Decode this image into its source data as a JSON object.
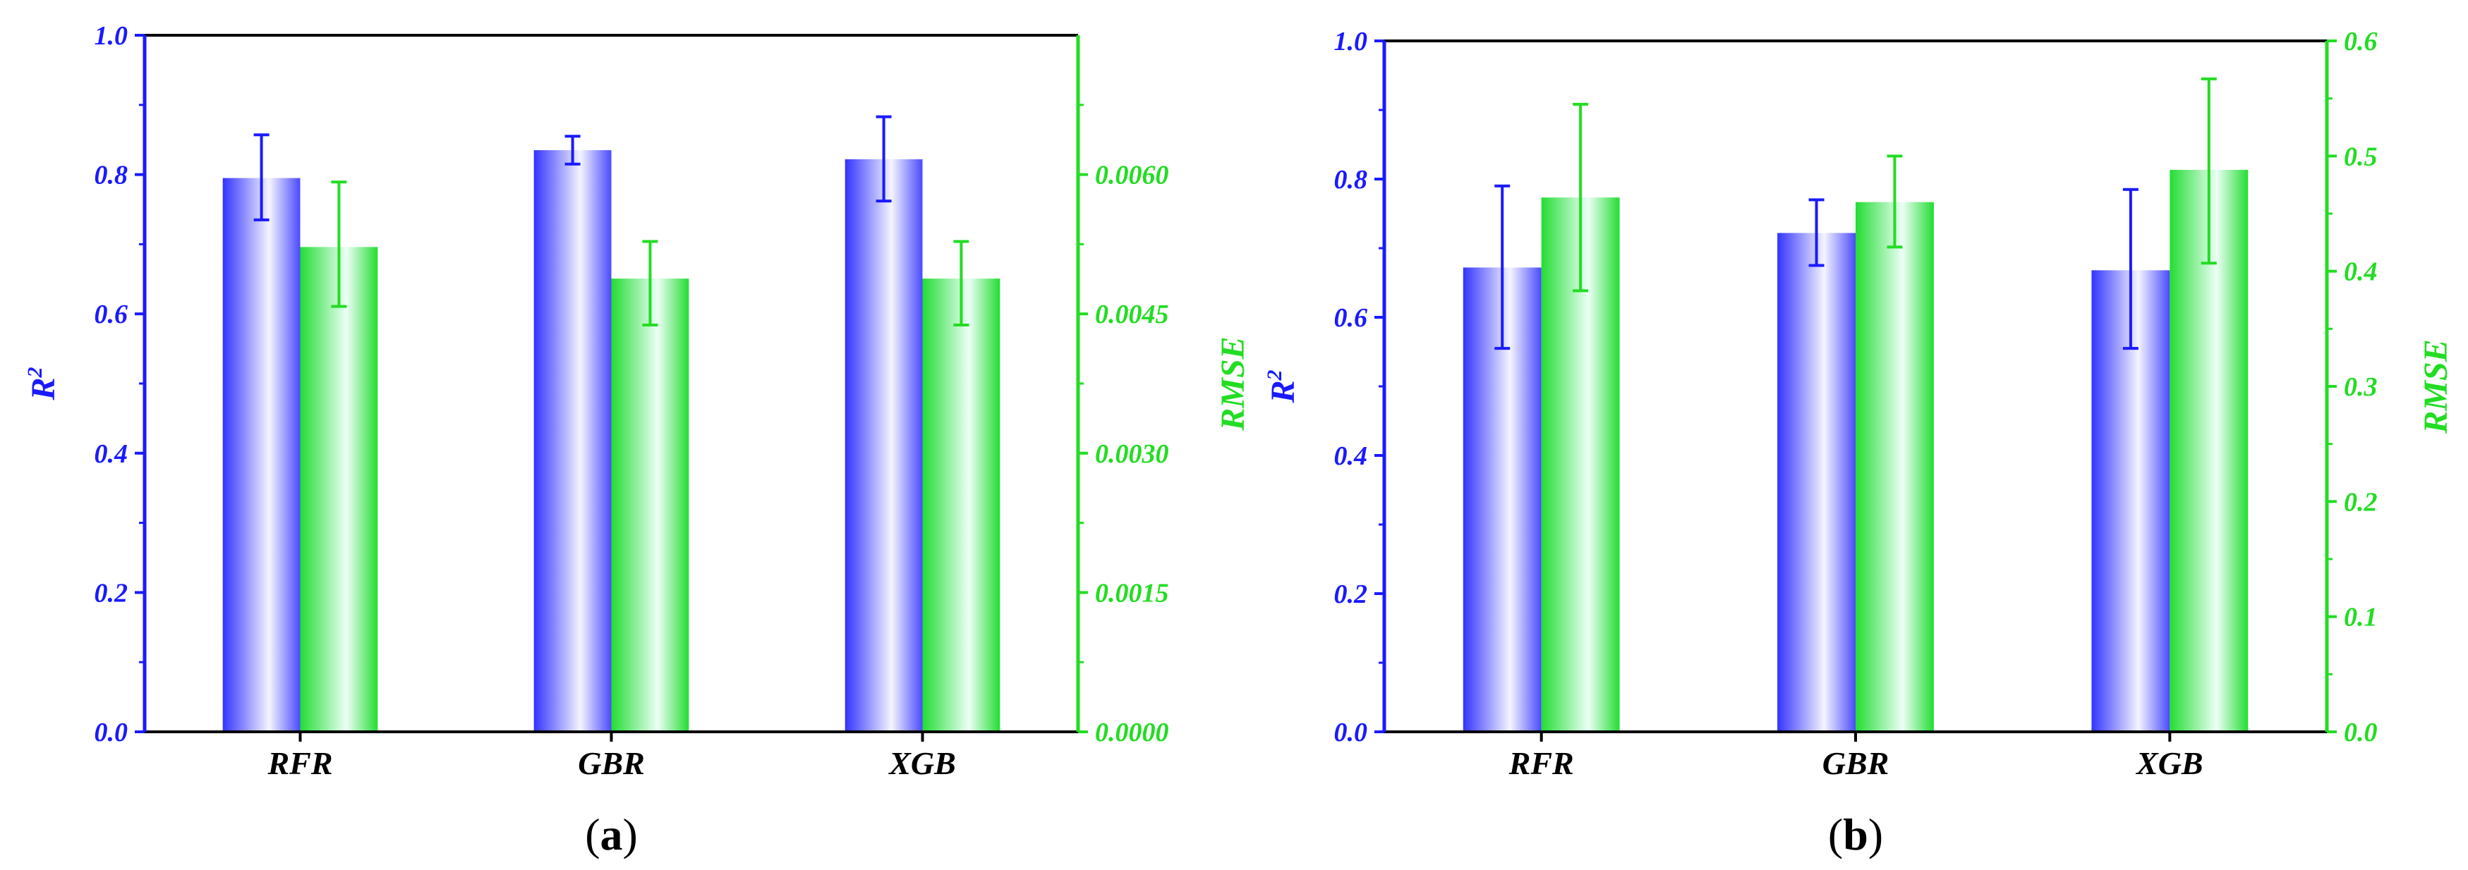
{
  "colors": {
    "left_axis": "#1a1aff",
    "right_axis": "#22dd22",
    "frame": "#000000"
  },
  "chart_data": [
    {
      "type": "bar",
      "panel_label_prefix": "(",
      "panel_label_letter": "a",
      "panel_label_suffix": ")",
      "categories": [
        "RFR",
        "GBR",
        "XGB"
      ],
      "left_axis": {
        "label_main": "R",
        "label_sup": "2",
        "ylim": [
          0,
          1.0
        ],
        "ticks": [
          0.0,
          0.2,
          0.4,
          0.6,
          0.8,
          1.0
        ],
        "tick_labels": [
          "0.0",
          "0.2",
          "0.4",
          "0.6",
          "0.8",
          "1.0"
        ]
      },
      "right_axis": {
        "label": "RMSE",
        "ylim": [
          0,
          0.0075
        ],
        "ticks": [
          0.0,
          0.0015,
          0.003,
          0.0045,
          0.006
        ],
        "tick_labels": [
          "0.0000",
          "0.0015",
          "0.0030",
          "0.0045",
          "0.0060"
        ]
      },
      "series": [
        {
          "axis": "left",
          "values": [
            0.795,
            0.835,
            0.822
          ],
          "err_low": [
            0.735,
            0.815,
            0.762
          ],
          "err_high": [
            0.857,
            0.855,
            0.883
          ]
        },
        {
          "axis": "right",
          "values": [
            0.00522,
            0.00488,
            0.00488
          ],
          "err_low": [
            0.00458,
            0.00438,
            0.00438
          ],
          "err_high": [
            0.00592,
            0.00528,
            0.00528
          ]
        }
      ]
    },
    {
      "type": "bar",
      "panel_label_prefix": "(",
      "panel_label_letter": "b",
      "panel_label_suffix": ")",
      "categories": [
        "RFR",
        "GBR",
        "XGB"
      ],
      "left_axis": {
        "label_main": "R",
        "label_sup": "2",
        "ylim": [
          0,
          1.0
        ],
        "ticks": [
          0.0,
          0.2,
          0.4,
          0.6,
          0.8,
          1.0
        ],
        "tick_labels": [
          "0.0",
          "0.2",
          "0.4",
          "0.6",
          "0.8",
          "1.0"
        ]
      },
      "right_axis": {
        "label": "RMSE",
        "ylim": [
          0,
          0.6
        ],
        "ticks": [
          0.0,
          0.1,
          0.2,
          0.3,
          0.4,
          0.5,
          0.6
        ],
        "tick_labels": [
          "0.0",
          "0.1",
          "0.2",
          "0.3",
          "0.4",
          "0.5",
          "0.6"
        ]
      },
      "series": [
        {
          "axis": "left",
          "values": [
            0.672,
            0.722,
            0.668
          ],
          "err_low": [
            0.555,
            0.675,
            0.555
          ],
          "err_high": [
            0.79,
            0.77,
            0.785
          ]
        },
        {
          "axis": "right",
          "values": [
            0.464,
            0.46,
            0.488
          ],
          "err_low": [
            0.383,
            0.421,
            0.407
          ],
          "err_high": [
            0.545,
            0.5,
            0.567
          ]
        }
      ]
    }
  ]
}
